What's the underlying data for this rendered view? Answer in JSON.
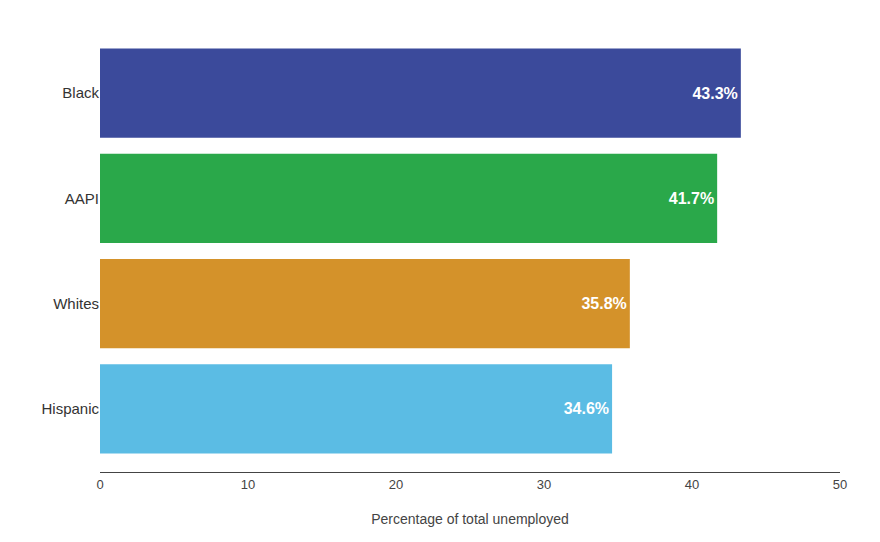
{
  "chart_data": {
    "type": "bar",
    "orientation": "horizontal",
    "categories": [
      "Hispanic",
      "Whites",
      "AAPI",
      "Black"
    ],
    "values": [
      34.6,
      35.8,
      41.7,
      43.3
    ],
    "value_labels": [
      "34.6%",
      "35.8%",
      "41.7%",
      "43.3%"
    ],
    "data_labels": true,
    "colors": [
      "#5BBCE4",
      "#D4922A",
      "#2AA84A",
      "#3B4A9B"
    ],
    "xlabel": "Percentage of total unemployed",
    "xlim": [
      0,
      50
    ],
    "xticks": [
      0,
      10,
      20,
      30,
      40,
      50
    ],
    "grid": false
  }
}
